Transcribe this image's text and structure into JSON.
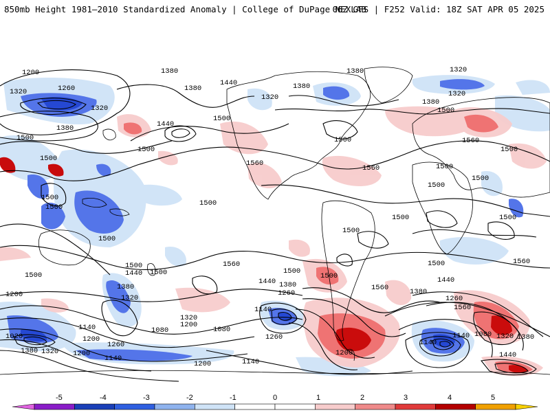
{
  "header": {
    "left_title": "850mb Height 1981–2010 Standardized Anomaly | College of DuPage NEXLAB",
    "right_title": "06Z GFS | F252 Valid: 18Z SAT APR 05 2025"
  },
  "map": {
    "contour_labels": [
      "1200",
      "1380",
      "1260",
      "1320",
      "1380",
      "1440",
      "1500",
      "1500",
      "1500",
      "1500",
      "1500",
      "1500",
      "1380",
      "1320",
      "1320",
      "1380",
      "1440",
      "1500",
      "1500",
      "1500",
      "1560",
      "1500",
      "1500",
      "1560",
      "1500",
      "1380",
      "1320",
      "1320",
      "1380",
      "1500",
      "1500",
      "1560",
      "1500",
      "1500",
      "1500",
      "1500",
      "1500",
      "1500",
      "1440",
      "1380",
      "1260",
      "1140",
      "1500",
      "1440",
      "1380",
      "1260",
      "1140",
      "1320",
      "1200",
      "1080",
      "1140",
      "1080",
      "1200",
      "1140",
      "1200",
      "1260",
      "1200",
      "1140",
      "1500",
      "1560",
      "1560",
      "1560",
      "1500",
      "1440",
      "1380",
      "1320",
      "1260",
      "1200",
      "1140",
      "1080",
      "1320",
      "1380",
      "1440",
      "1560",
      "1020",
      "1380",
      "1320",
      "1200"
    ],
    "colors": {
      "strong_negative": "#1a3fd1",
      "negative": "#4b6ee8",
      "weak_negative": "#cfe3f7",
      "weak_positive": "#f7cccc",
      "positive": "#ef6c6c",
      "strong_positive": "#c80000",
      "contour": "#000000",
      "coastline": "#000000"
    }
  },
  "colorbar": {
    "ticks": [
      "-5",
      "-4",
      "-3",
      "-2",
      "-1",
      "0",
      "1",
      "2",
      "3",
      "4",
      "5"
    ],
    "colors": [
      "#e063e0",
      "#8a1cc8",
      "#1a3fb8",
      "#2f5fe0",
      "#8fb3ee",
      "#cfe3f7",
      "#ffffff",
      "#ffffff",
      "#f7cccc",
      "#ef8a8a",
      "#e03a3a",
      "#b40000",
      "#f0a000",
      "#f7d000"
    ]
  }
}
